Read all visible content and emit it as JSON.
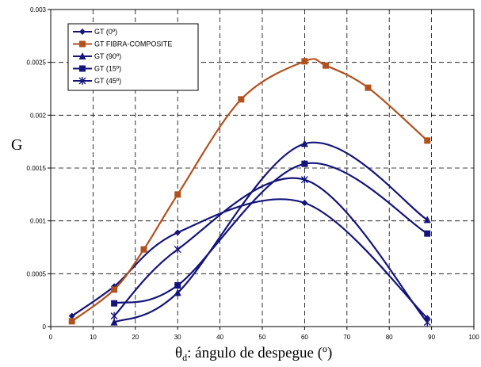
{
  "chart_data": {
    "type": "line",
    "title": "",
    "ylabel": "G",
    "xlabel_prefix": "θ",
    "xlabel_sub": "d",
    "xlabel_rest": ": ángulo de despegue (º)",
    "xlim": [
      0,
      100
    ],
    "ylim": [
      0,
      0.003
    ],
    "x_ticks": [
      "0",
      "10",
      "20",
      "30",
      "40",
      "50",
      "60",
      "70",
      "80",
      "90",
      "100"
    ],
    "y_ticks": [
      "0",
      "0.0005",
      "0.001",
      "0.0015",
      "0.002",
      "0.0025",
      "0.003"
    ],
    "grid": true,
    "legend_position": "top-left",
    "series": [
      {
        "name": "GT (0º)",
        "marker": "diamond",
        "color": "#14147a",
        "x": [
          5,
          15,
          30,
          60,
          89
        ],
        "y": [
          0.0001,
          0.00038,
          0.00089,
          0.00117,
          8e-05
        ]
      },
      {
        "name": "GT FIBRA-COMPOSITE",
        "marker": "square",
        "color": "#b2511e",
        "x": [
          5,
          15,
          22,
          30,
          45,
          60,
          65,
          75,
          89
        ],
        "y": [
          5e-05,
          0.00035,
          0.00073,
          0.00125,
          0.00215,
          0.00251,
          0.00247,
          0.00226,
          0.00176
        ]
      },
      {
        "name": "GT (90º)",
        "marker": "triangle",
        "color": "#14147a",
        "x": [
          15,
          30,
          60,
          89
        ],
        "y": [
          4e-05,
          0.00032,
          0.00173,
          0.00101
        ]
      },
      {
        "name": "GT (15º)",
        "marker": "square",
        "color": "#14147a",
        "x": [
          15,
          30,
          60,
          89
        ],
        "y": [
          0.00022,
          0.00039,
          0.00154,
          0.00088
        ]
      },
      {
        "name": "GT (45º)",
        "marker": "star",
        "color": "#14147a",
        "x": [
          15,
          30,
          60,
          89
        ],
        "y": [
          0.0001,
          0.00073,
          0.00139,
          4e-05
        ]
      }
    ]
  }
}
